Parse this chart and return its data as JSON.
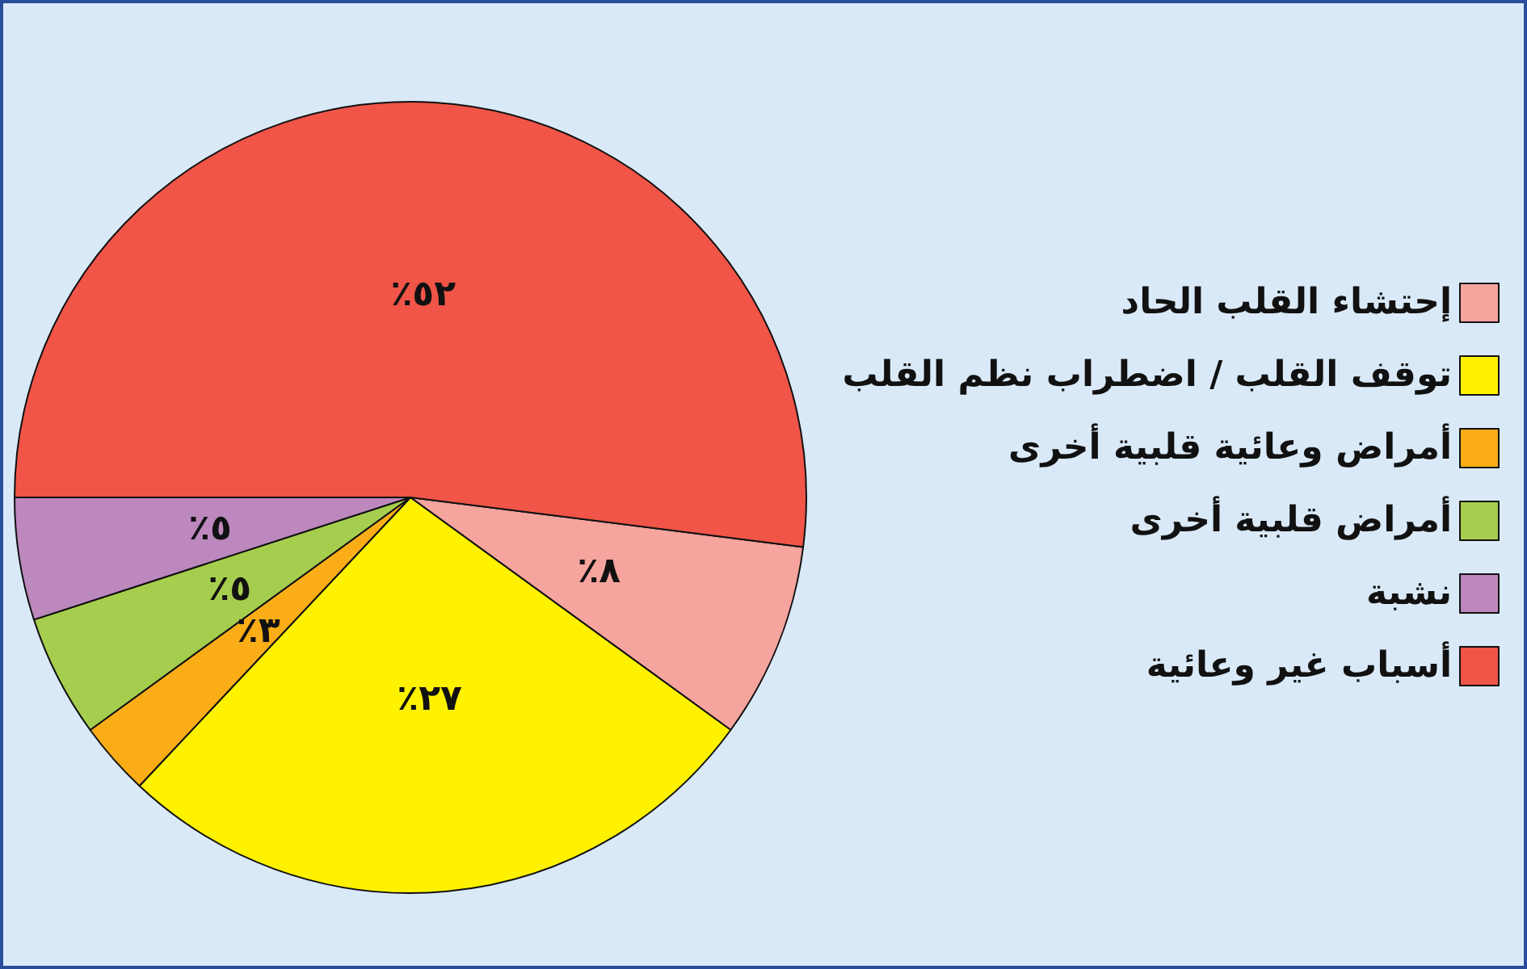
{
  "chart_data": {
    "type": "pie",
    "categories": [
      "إحتشاء القلب الحاد",
      "توقف القلب / اضطراب نظم القلب",
      "أمراض وعائية قلبية أخرى",
      "أمراض قلبية أخرى",
      "نشبة",
      "أسباب غير وعائية"
    ],
    "values": [
      8,
      27,
      3,
      5,
      5,
      52
    ],
    "colors": [
      "#f5a49e",
      "#fff200",
      "#fbad18",
      "#a6ce4e",
      "#bd88be",
      "#f05548"
    ],
    "value_labels": [
      "٪٨",
      "٪٢٧",
      "٪٣",
      "٪٥",
      "٪٥",
      "٪٥٢"
    ],
    "legend": "right"
  }
}
